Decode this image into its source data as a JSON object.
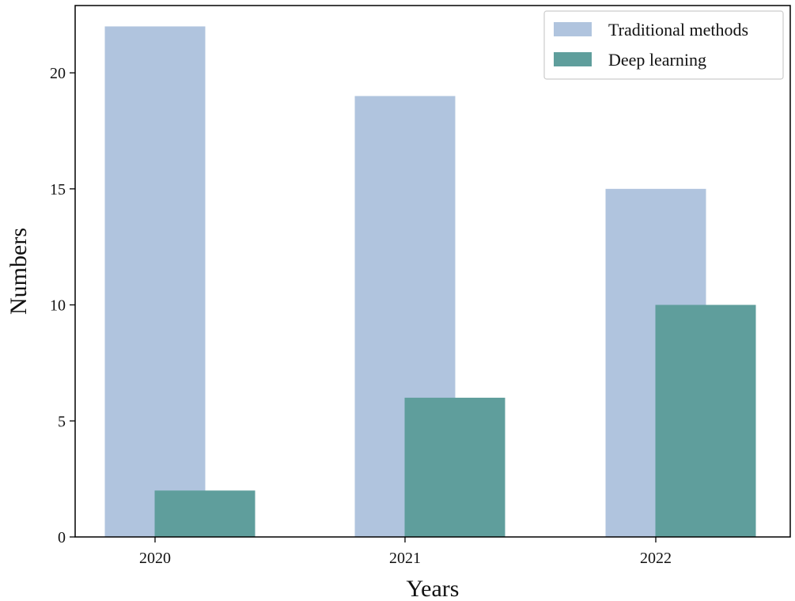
{
  "chart_data": {
    "type": "bar",
    "title": "",
    "xlabel": "Years",
    "ylabel": "Numbers",
    "categories": [
      "2020",
      "2021",
      "2022"
    ],
    "series": [
      {
        "name": "Traditional methods",
        "values": [
          22,
          19,
          15
        ],
        "color": "#b0c4de"
      },
      {
        "name": "Deep learning",
        "values": [
          2,
          6,
          10
        ],
        "color": "#5f9e9c"
      }
    ],
    "ylim": [
      0,
      22
    ],
    "yticks": [
      0,
      5,
      10,
      15,
      20
    ],
    "grid": false,
    "legend_position": "top-right"
  }
}
